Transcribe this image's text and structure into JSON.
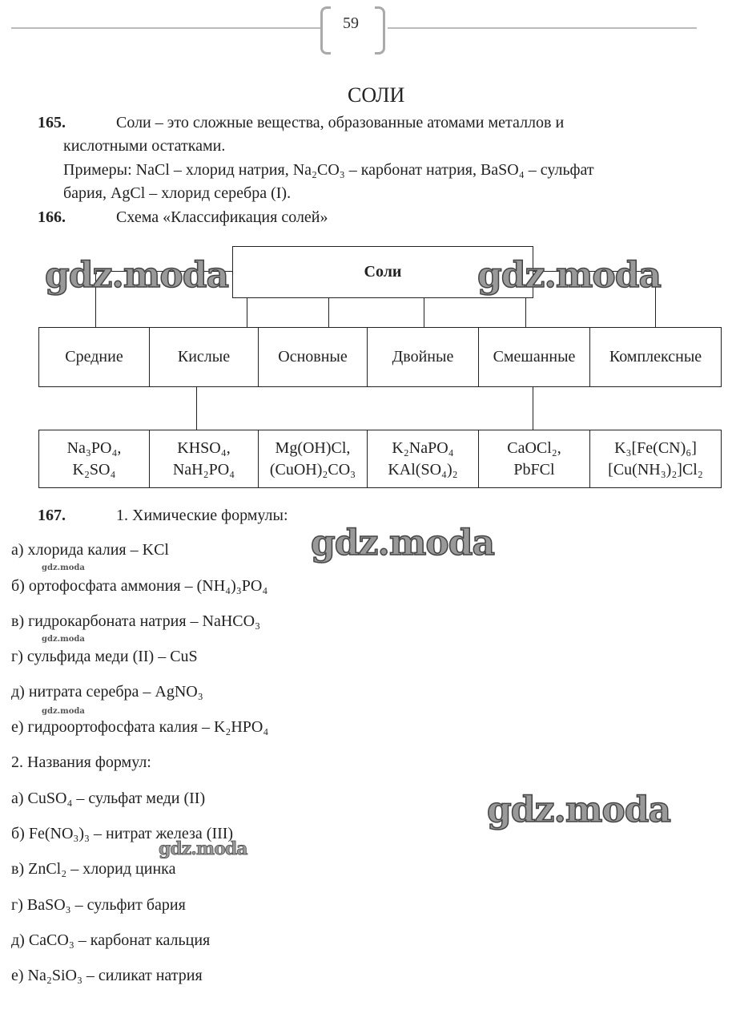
{
  "header": {
    "page_number": "59"
  },
  "title": "СОЛИ",
  "task165": {
    "num": "165.",
    "line1": "Соли – это сложные вещества, образованные атомами металлов и",
    "line2": "кислотными остатками.",
    "line3": "Примеры: NaCl – хлорид натрия, Na₂CO₃ – карбонат натрия, BaSO₄ – сульфат",
    "line4": "бария, AgCl – хлорид серебра (I)."
  },
  "task166": {
    "num": "166.",
    "text": "Схема «Классификация солей»"
  },
  "diagram": {
    "root": "Соли",
    "types": [
      "Средние",
      "Кислые",
      "Основные",
      "Двойные",
      "Смешанные",
      "Комплексные"
    ],
    "examples": [
      [
        "Na₃PO₄,",
        "K₂SO₄"
      ],
      [
        "KHSO₄,",
        "NaH₂PO₄"
      ],
      [
        "Mg(OH)Cl,",
        "(CuOH)₂CO₃"
      ],
      [
        "K₂NaPO₄",
        "KAl(SO₄)₂"
      ],
      [
        "CaOCl₂,",
        "PbFCl"
      ],
      [
        "K₃[Fe(CN)₆]",
        "[Cu(NH₃)₂]Cl₂"
      ]
    ]
  },
  "task167": {
    "num": "167.",
    "heading1": "1. Химические формулы:",
    "formulas": [
      "а) хлорида калия – KCl",
      "б) ортофосфата аммония – (NH₄)₃PO₄",
      "в) гидрокарбоната натрия – NaHCO₃",
      "г) сульфида меди (II) – CuS",
      "д) нитрата серебра – AgNO₃",
      "е) гидроортофосфата калия – K₂HPO₄"
    ],
    "heading2": "2. Названия формул:",
    "names": [
      "а) CuSO₄ – сульфат меди (II)",
      "б) Fe(NO₃)₃ – нитрат железа (III)",
      "в) ZnCl₂ – хлорид цинка",
      "г) BaSO₃ – сульфит бария",
      "д) CaCO₃ – карбонат кальция",
      "е) Na₂SiO₃ – силикат натрия"
    ]
  },
  "watermark": "gdz.moda"
}
